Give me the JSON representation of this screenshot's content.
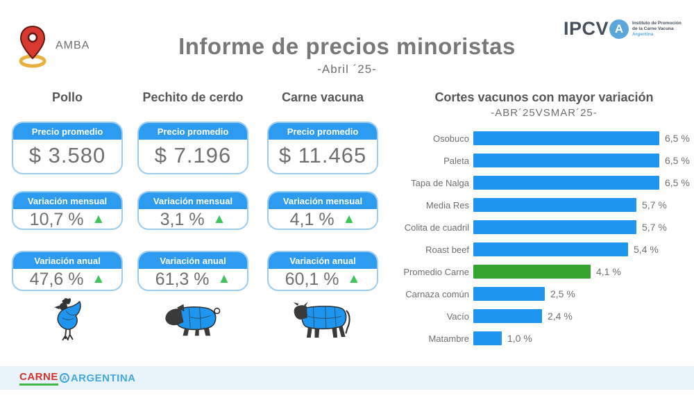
{
  "header": {
    "location_label": "AMBA",
    "title": "Informe de precios minoristas",
    "subtitle": "-Abril ´25-",
    "logo": {
      "acronym": "IPCV",
      "badge_letter": "A",
      "org_line1": "Instituto de Promoción",
      "org_line2": "de la Carne Vacuna",
      "org_line3": "Argentina"
    }
  },
  "card_labels": {
    "price": "Precio promedio",
    "monthly": "Variación mensual",
    "annual": "Variación anual"
  },
  "icons": {
    "up_triangle": "▲",
    "location_pin": "map-pin",
    "animals": [
      "chicken-icon",
      "pig-icon",
      "cow-icon"
    ]
  },
  "products": [
    {
      "name": "Pollo",
      "price": "$ 3.580",
      "monthly": "10,7 %",
      "annual": "47,6 %",
      "trend_monthly": "up",
      "trend_annual": "up"
    },
    {
      "name": "Pechito de cerdo",
      "price": "$ 7.196",
      "monthly": "3,1 %",
      "annual": "61,3 %",
      "trend_monthly": "up",
      "trend_annual": "up"
    },
    {
      "name": "Carne vacuna",
      "price": "$ 11.465",
      "monthly": "4,1 %",
      "annual": "60,1 %",
      "trend_monthly": "up",
      "trend_annual": "up"
    }
  ],
  "chart_data": {
    "type": "bar",
    "orientation": "horizontal",
    "title": "Cortes vacunos con mayor variación",
    "subtitle": "-ABR´25VSMAR´25-",
    "categories": [
      "Osobuco",
      "Paleta",
      "Tapa de Nalga",
      "Media Res",
      "Colita de cuadril",
      "Roast beef",
      "Promedio Carne",
      "Carnaza común",
      "Vacío",
      "Matambre"
    ],
    "values": [
      6.5,
      6.5,
      6.5,
      5.7,
      5.7,
      5.4,
      4.1,
      2.5,
      2.4,
      1.0
    ],
    "value_labels": [
      "6,5 %",
      "6,5 %",
      "6,5 %",
      "5,7 %",
      "5,7 %",
      "5,4 %",
      "4,1 %",
      "2,5 %",
      "2,4 %",
      "1,0 %"
    ],
    "xlim": [
      0,
      6.5
    ],
    "grid": false,
    "legend": false,
    "bar_color": "#1e96f0",
    "highlight_index": 6,
    "highlight_color": "#35a42e"
  },
  "footer": {
    "brand_left": "CARNE",
    "brand_badge": "A",
    "brand_right": "ARGENTINA"
  },
  "colors": {
    "primary_blue": "#1e96f0",
    "card_header_blue": "#2d9bf0",
    "green_up": "#3ec558",
    "green_bar": "#35a42e",
    "card_border": "#9bccf3",
    "text_gray": "#6e6e6e",
    "footer_bg": "#e9f3fa"
  }
}
